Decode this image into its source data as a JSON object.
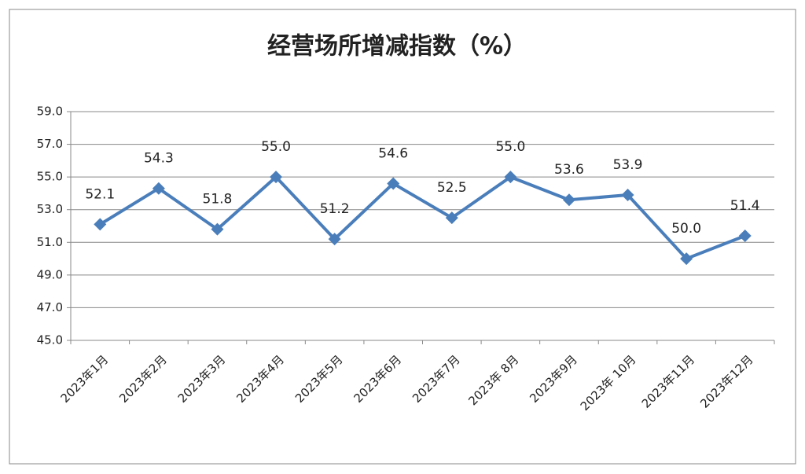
{
  "chart_data": {
    "type": "line",
    "title": "经营场所增减指数（%）",
    "categories": [
      "2023年1月",
      "2023年2月",
      "2023年3月",
      "2023年4月",
      "2023年5月",
      "2023年6月",
      "2023年7月",
      "2023年 8月",
      "2023年9月",
      "2023年 10月",
      "2023年11月",
      "2023年12月"
    ],
    "series": [
      {
        "name": "经营场所增减指数",
        "color": "#4a7ebb",
        "values": [
          52.1,
          54.3,
          51.8,
          55.0,
          51.2,
          54.6,
          52.5,
          55.0,
          53.6,
          53.9,
          50.0,
          51.4
        ],
        "value_labels": [
          "52.1",
          "54.3",
          "51.8",
          "55.0",
          "51.2",
          "54.6",
          "52.5",
          "55.0",
          "53.6",
          "53.9",
          "50.0",
          "51.4"
        ]
      }
    ],
    "ylim": [
      45,
      59
    ],
    "yticks": [
      {
        "value": 45,
        "label": "45.0"
      },
      {
        "value": 47,
        "label": "47.0"
      },
      {
        "value": 49,
        "label": "49.0"
      },
      {
        "value": 51,
        "label": "51.0"
      },
      {
        "value": 53,
        "label": "53.0"
      },
      {
        "value": 55,
        "label": "55.0"
      },
      {
        "value": 57,
        "label": "57.0"
      },
      {
        "value": 59,
        "label": "59.0"
      }
    ],
    "grid": true
  }
}
